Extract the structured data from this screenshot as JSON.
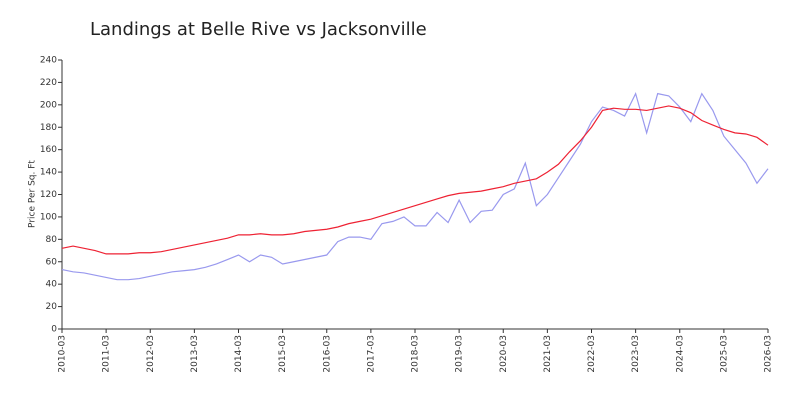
{
  "chart_data": {
    "type": "line",
    "title": "Landings at Belle Rive vs Jacksonville",
    "ylabel": "Price Per Sq. Ft",
    "x": [
      "2010-03",
      "2010-06",
      "2010-09",
      "2010-12",
      "2011-03",
      "2011-06",
      "2011-09",
      "2011-12",
      "2012-03",
      "2012-06",
      "2012-09",
      "2012-12",
      "2013-03",
      "2013-06",
      "2013-09",
      "2013-12",
      "2014-03",
      "2014-06",
      "2014-09",
      "2014-12",
      "2015-03",
      "2015-06",
      "2015-09",
      "2015-12",
      "2016-03",
      "2016-06",
      "2016-09",
      "2016-12",
      "2017-03",
      "2017-06",
      "2017-09",
      "2017-12",
      "2018-03",
      "2018-06",
      "2018-09",
      "2018-12",
      "2019-03",
      "2019-06",
      "2019-09",
      "2019-12",
      "2020-03",
      "2020-06",
      "2020-09",
      "2020-12",
      "2021-03",
      "2021-06",
      "2021-09",
      "2021-12",
      "2022-03",
      "2022-06",
      "2022-09",
      "2022-12",
      "2023-03",
      "2023-06",
      "2023-09",
      "2023-12",
      "2024-03",
      "2024-06",
      "2024-09",
      "2024-12",
      "2025-03",
      "2025-06",
      "2025-09",
      "2025-12",
      "2026-03"
    ],
    "series": [
      {
        "color": "#ee2233",
        "values": [
          72,
          74,
          72,
          70,
          67,
          67,
          67,
          68,
          68,
          69,
          71,
          73,
          75,
          77,
          79,
          81,
          84,
          84,
          85,
          84,
          84,
          85,
          87,
          88,
          89,
          91,
          94,
          96,
          98,
          101,
          104,
          107,
          110,
          113,
          116,
          119,
          121,
          122,
          123,
          125,
          127,
          130,
          132,
          134,
          140,
          147,
          158,
          168,
          180,
          195,
          197,
          196,
          196,
          195,
          197,
          199,
          197,
          193,
          186,
          182,
          178,
          175,
          174,
          171,
          164
        ]
      },
      {
        "color": "#9999ee",
        "values": [
          53,
          51,
          50,
          48,
          46,
          44,
          44,
          45,
          47,
          49,
          51,
          52,
          53,
          55,
          58,
          62,
          66,
          60,
          66,
          64,
          58,
          60,
          62,
          64,
          66,
          78,
          82,
          82,
          80,
          94,
          96,
          100,
          92,
          92,
          104,
          95,
          115,
          95,
          105,
          106,
          120,
          125,
          148,
          110,
          120,
          135,
          150,
          165,
          185,
          198,
          195,
          190,
          210,
          175,
          210,
          208,
          198,
          185,
          210,
          195,
          172,
          160,
          148,
          130,
          143
        ]
      }
    ],
    "xticks": [
      "2010-03",
      "2011-03",
      "2012-03",
      "2013-03",
      "2014-03",
      "2015-03",
      "2016-03",
      "2017-03",
      "2018-03",
      "2019-03",
      "2020-03",
      "2021-03",
      "2022-03",
      "2023-03",
      "2024-03",
      "2025-03",
      "2026-03"
    ],
    "ylim": [
      0,
      240
    ],
    "yticks": [
      0,
      20,
      40,
      60,
      80,
      100,
      120,
      140,
      160,
      180,
      200,
      220,
      240
    ]
  }
}
